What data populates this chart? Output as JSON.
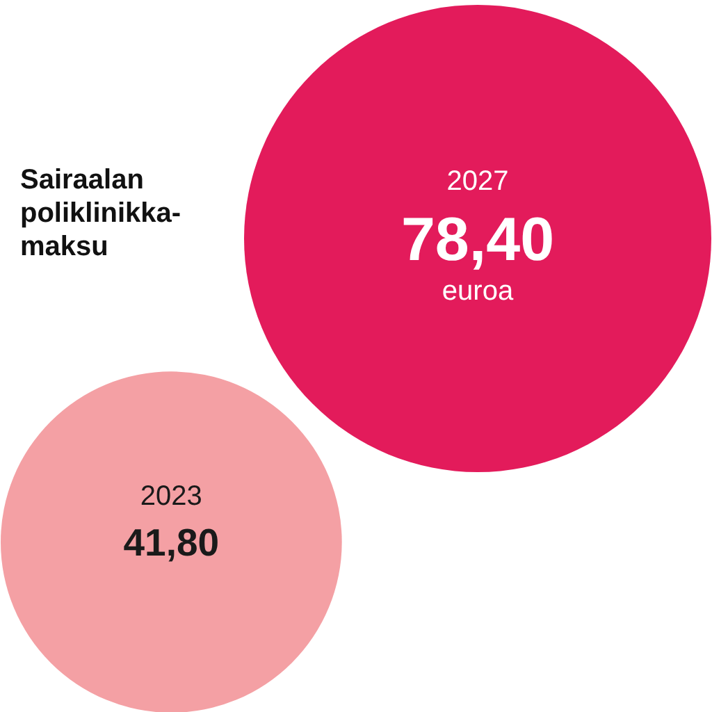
{
  "chart_data": {
    "type": "other",
    "title": "Sairaalan\npoliklinikka-\nmaksu",
    "categories": [
      "2023",
      "2027"
    ],
    "values": [
      41.8,
      78.4
    ],
    "value_labels": [
      "41,80",
      "78,40"
    ],
    "colors": [
      "#f4a0a4",
      "#e31b5b"
    ],
    "annotations": [
      "euroa"
    ]
  }
}
